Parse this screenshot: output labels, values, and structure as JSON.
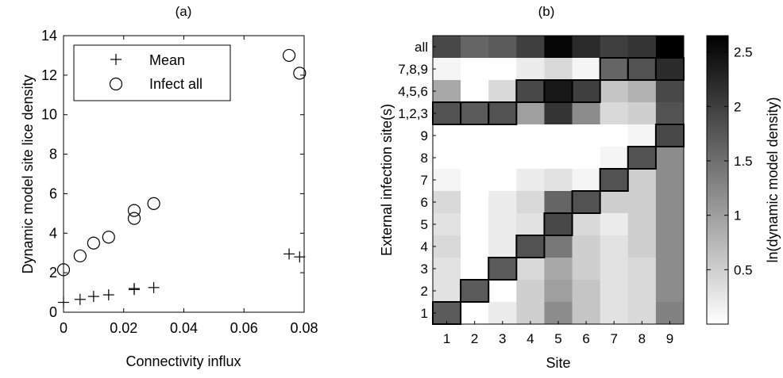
{
  "chart_data": [
    {
      "type": "scatter",
      "title": "(a)",
      "xlabel": "Connectivity influx",
      "ylabel": "Dynamic model site lice density",
      "xlim": [
        0,
        0.08
      ],
      "ylim": [
        0,
        14
      ],
      "xticks": [
        "0",
        "0.02",
        "0.04",
        "0.06",
        "0.08"
      ],
      "yticks": [
        "0",
        "2",
        "4",
        "6",
        "8",
        "10",
        "12",
        "14"
      ],
      "legend_position": "top-left",
      "series": [
        {
          "name": "Mean",
          "marker": "plus",
          "points": [
            [
              0.0,
              0.5
            ],
            [
              0.0055,
              0.65
            ],
            [
              0.01,
              0.8
            ],
            [
              0.015,
              0.88
            ],
            [
              0.0235,
              1.15
            ],
            [
              0.0235,
              1.2
            ],
            [
              0.03,
              1.25
            ],
            [
              0.075,
              2.95
            ],
            [
              0.0785,
              2.8
            ]
          ]
        },
        {
          "name": "Infect all",
          "marker": "circle",
          "points": [
            [
              0.0,
              2.15
            ],
            [
              0.0055,
              2.85
            ],
            [
              0.01,
              3.5
            ],
            [
              0.015,
              3.8
            ],
            [
              0.0235,
              4.75
            ],
            [
              0.0235,
              5.15
            ],
            [
              0.03,
              5.5
            ],
            [
              0.075,
              13.0
            ],
            [
              0.0785,
              12.1
            ]
          ]
        }
      ]
    },
    {
      "type": "heatmap",
      "title": "(b)",
      "xlabel": "Site",
      "ylabel": "External infection site(s)",
      "colorbar_label": "ln(dynamic model density)",
      "colorbar_ticks": [
        "0.5",
        "1",
        "1.5",
        "2",
        "2.5"
      ],
      "colorbar_range": [
        0,
        2.65
      ],
      "x_categories": [
        "1",
        "2",
        "3",
        "4",
        "5",
        "6",
        "7",
        "8",
        "9"
      ],
      "y_categories_top_to_bottom": [
        "all",
        "7,8,9",
        "4,5,6",
        "1,2,3",
        "9",
        "8",
        "7",
        "6",
        "5",
        "4",
        "3",
        "2",
        "1"
      ],
      "values_top_to_bottom": [
        [
          1.9,
          1.6,
          1.7,
          2.0,
          2.6,
          2.2,
          2.0,
          2.1,
          2.65
        ],
        [
          0.1,
          0.0,
          0.0,
          0.2,
          0.4,
          0.1,
          1.6,
          1.8,
          2.2
        ],
        [
          0.9,
          0.0,
          0.4,
          1.9,
          2.4,
          2.0,
          0.6,
          0.8,
          1.9
        ],
        [
          1.8,
          1.7,
          1.8,
          1.0,
          2.1,
          1.2,
          0.4,
          0.5,
          1.8
        ],
        [
          0.0,
          0.0,
          0.0,
          0.0,
          0.0,
          0.0,
          0.0,
          0.1,
          1.9
        ],
        [
          0.0,
          0.0,
          0.0,
          0.0,
          0.0,
          0.0,
          0.1,
          1.8,
          1.2
        ],
        [
          0.1,
          0.0,
          0.0,
          0.2,
          0.3,
          0.1,
          1.8,
          0.5,
          1.2
        ],
        [
          0.4,
          0.0,
          0.2,
          0.4,
          1.6,
          1.8,
          0.5,
          0.5,
          1.2
        ],
        [
          0.3,
          0.0,
          0.2,
          0.3,
          1.9,
          0.4,
          0.2,
          0.5,
          1.2
        ],
        [
          0.4,
          0.0,
          0.2,
          1.8,
          1.4,
          0.5,
          0.3,
          0.5,
          1.2
        ],
        [
          0.3,
          0.0,
          1.7,
          0.4,
          0.9,
          0.5,
          0.3,
          0.4,
          1.2
        ],
        [
          0.3,
          1.7,
          0.0,
          0.5,
          1.0,
          0.6,
          0.3,
          0.4,
          1.2
        ],
        [
          1.7,
          0.0,
          0.2,
          0.5,
          1.2,
          0.6,
          0.3,
          0.4,
          1.3
        ]
      ],
      "outlined_cells_top_to_bottom": [
        [
          3,
          0
        ],
        [
          3,
          1
        ],
        [
          3,
          2
        ],
        [
          2,
          3
        ],
        [
          2,
          4
        ],
        [
          2,
          5
        ],
        [
          1,
          6
        ],
        [
          1,
          7
        ],
        [
          1,
          8
        ],
        [
          4,
          8
        ],
        [
          5,
          7
        ],
        [
          6,
          6
        ],
        [
          7,
          5
        ],
        [
          8,
          4
        ],
        [
          9,
          3
        ],
        [
          10,
          2
        ],
        [
          11,
          1
        ],
        [
          12,
          0
        ]
      ]
    }
  ]
}
